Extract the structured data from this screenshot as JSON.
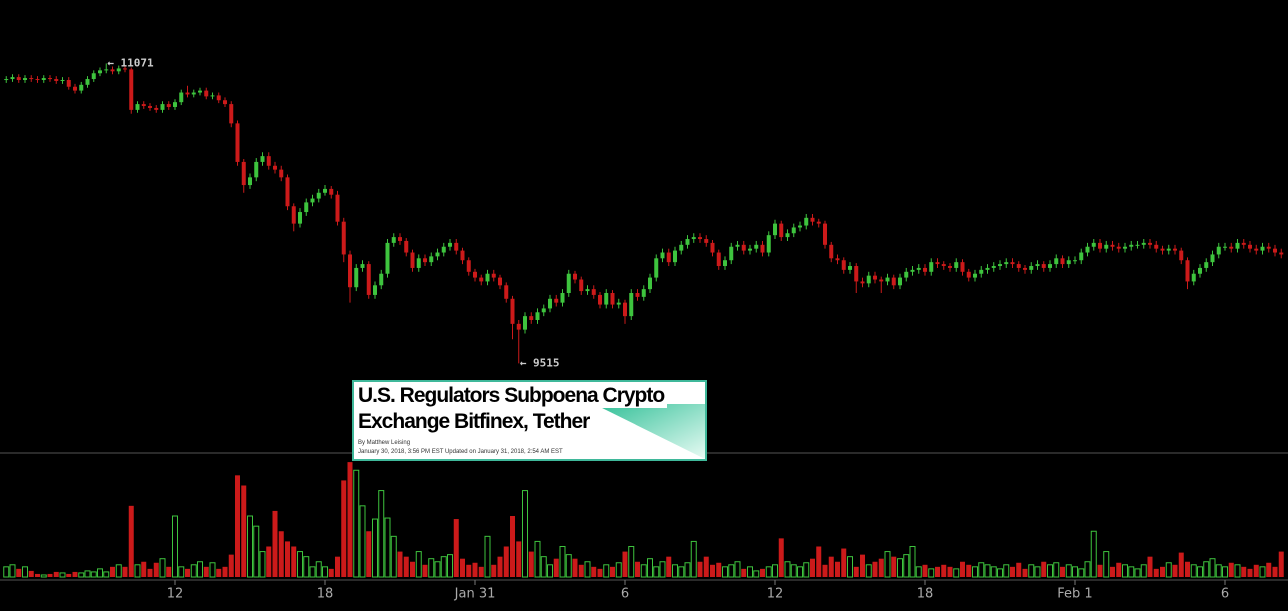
{
  "chart_data": {
    "type": "candlestick",
    "x": [
      5.25,
      5.5,
      5.75,
      6,
      6.25,
      6.5,
      6.75,
      7,
      7.25,
      7.5,
      7.75,
      8,
      8.25,
      8.5,
      8.75,
      9,
      9.25,
      9.5,
      9.75,
      10,
      10.25,
      10.5,
      10.75,
      11,
      11.25,
      11.5,
      11.75,
      12,
      12.25,
      12.5,
      12.75,
      13,
      13.25,
      13.5,
      13.75,
      14,
      14.25,
      14.5,
      14.75,
      15,
      15.25,
      15.5,
      15.75,
      16,
      16.25,
      16.5,
      16.75,
      17,
      17.25,
      17.5,
      17.75,
      18,
      18.25,
      18.5,
      18.75,
      19,
      19.25,
      19.5,
      19.75,
      20,
      20.25,
      20.5,
      20.75,
      21,
      21.25,
      21.5,
      21.75,
      22,
      22.25,
      22.5,
      22.75,
      23,
      23.25,
      23.5,
      23.75,
      24,
      24.25,
      24.5,
      24.75,
      25,
      25.25,
      25.5,
      25.75,
      26,
      26.25,
      26.5,
      26.75,
      27,
      27.25,
      27.5,
      27.75,
      28,
      28.25,
      28.5,
      28.75,
      29,
      29.25,
      29.5,
      29.75,
      30,
      30.25,
      30.5,
      30.75,
      31,
      31.25,
      31.5,
      31.75,
      32,
      32.25,
      32.5,
      32.75,
      33,
      33.25,
      33.5,
      33.75,
      34,
      34.25,
      34.5,
      34.75,
      35,
      35.25,
      35.5,
      35.75,
      36,
      36.25,
      36.5,
      36.75,
      37,
      37.25,
      37.5,
      37.75,
      38,
      38.25,
      38.5,
      38.75,
      39,
      39.25,
      39.5,
      39.75,
      40,
      40.25,
      40.5,
      40.75,
      41,
      41.25,
      41.5,
      41.75,
      42,
      42.25,
      42.5,
      42.75,
      43,
      43.25,
      43.5,
      43.75,
      44,
      44.25,
      44.5,
      44.75,
      45,
      45.25,
      45.5,
      45.75,
      46,
      46.25,
      46.5,
      46.75,
      47,
      47.25,
      47.5,
      47.75,
      48,
      48.25,
      48.5,
      48.75,
      49,
      49.25,
      49.5,
      49.75,
      50,
      50.25,
      50.5,
      50.75,
      51,
      51.25,
      51.5,
      51.75,
      52,
      52.25,
      52.5,
      52.75,
      53,
      53.25,
      53.5,
      53.75,
      54,
      54.25,
      54.5,
      54.75,
      55,
      55.25,
      55.5,
      55.75,
      56,
      56.25
    ],
    "open": [
      10985,
      10990,
      11000,
      10985,
      10995,
      10990,
      10985,
      10995,
      10990,
      10980,
      10985,
      10950,
      10930,
      10960,
      10990,
      11020,
      11035,
      11040,
      11030,
      11045,
      11040,
      10830,
      10860,
      10850,
      10840,
      10830,
      10860,
      10845,
      10870,
      10920,
      10910,
      10920,
      10930,
      10900,
      10905,
      10880,
      10860,
      10760,
      10560,
      10440,
      10480,
      10560,
      10590,
      10540,
      10520,
      10480,
      10330,
      10240,
      10300,
      10350,
      10370,
      10400,
      10420,
      10390,
      10250,
      10080,
      9910,
      10010,
      10030,
      9870,
      9920,
      9980,
      10140,
      10170,
      10150,
      10090,
      10010,
      10060,
      10040,
      10070,
      10090,
      10120,
      10140,
      10100,
      10050,
      9990,
      9960,
      9940,
      9980,
      9960,
      9920,
      9850,
      9720,
      9690,
      9760,
      9740,
      9780,
      9800,
      9850,
      9830,
      9880,
      9980,
      9950,
      9890,
      9900,
      9870,
      9820,
      9880,
      9820,
      9830,
      9760,
      9880,
      9860,
      9900,
      9960,
      10060,
      10090,
      10040,
      10100,
      10130,
      10160,
      10170,
      10160,
      10140,
      10090,
      10020,
      10050,
      10120,
      10130,
      10100,
      10110,
      10130,
      10090,
      10180,
      10240,
      10170,
      10190,
      10220,
      10230,
      10270,
      10250,
      10240,
      10130,
      10060,
      10050,
      10000,
      10020,
      9940,
      9930,
      9970,
      9950,
      9940,
      9960,
      9920,
      9960,
      9990,
      10000,
      10010,
      9990,
      10040,
      10030,
      10020,
      10010,
      10040,
      9990,
      9960,
      9980,
      10000,
      10010,
      10020,
      10030,
      10040,
      10030,
      10010,
      10000,
      10020,
      10030,
      10010,
      10030,
      10060,
      10030,
      10050,
      10050,
      10090,
      10120,
      10140,
      10110,
      10130,
      10120,
      10110,
      10120,
      10130,
      10130,
      10140,
      10130,
      10110,
      10100,
      10110,
      10100,
      10050,
      9940,
      9980,
      10010,
      10040,
      10080,
      10120,
      10120,
      10110,
      10140,
      10130,
      10110,
      10100,
      10120,
      10110,
      10090
    ],
    "high": [
      11005,
      11015,
      11015,
      11010,
      11010,
      11005,
      11010,
      11010,
      11005,
      11000,
      11000,
      10965,
      10975,
      11005,
      11035,
      11050,
      11071,
      11055,
      11060,
      11060,
      11050,
      10875,
      10875,
      10865,
      10855,
      10875,
      10875,
      10885,
      10935,
      10955,
      10935,
      10945,
      10945,
      10920,
      10920,
      10895,
      10875,
      10775,
      10575,
      10500,
      10580,
      10610,
      10610,
      10560,
      10540,
      10495,
      10345,
      10320,
      10370,
      10390,
      10420,
      10440,
      10435,
      10410,
      10270,
      10100,
      10030,
      10050,
      10045,
      9940,
      10000,
      10160,
      10190,
      10190,
      10165,
      10105,
      10080,
      10080,
      10090,
      10110,
      10140,
      10160,
      10160,
      10115,
      10065,
      10005,
      9975,
      10000,
      10000,
      9975,
      9935,
      9865,
      9740,
      9780,
      9780,
      9800,
      9820,
      9870,
      9870,
      9900,
      10000,
      9995,
      9965,
      9920,
      9920,
      9885,
      9900,
      9895,
      9850,
      9845,
      9900,
      9900,
      9920,
      9980,
      10080,
      10110,
      10110,
      10120,
      10150,
      10180,
      10190,
      10190,
      10180,
      10155,
      10105,
      10070,
      10140,
      10150,
      10150,
      10130,
      10150,
      10150,
      10200,
      10260,
      10255,
      10210,
      10240,
      10250,
      10290,
      10290,
      10265,
      10255,
      10145,
      10080,
      10065,
      10040,
      10035,
      9960,
      9990,
      9990,
      9965,
      9980,
      9975,
      9980,
      10010,
      10020,
      10030,
      10030,
      10060,
      10060,
      10045,
      10035,
      10060,
      10055,
      10005,
      10000,
      10020,
      10030,
      10040,
      10050,
      10060,
      10060,
      10045,
      10025,
      10040,
      10050,
      10045,
      10050,
      10080,
      10075,
      10070,
      10070,
      10110,
      10140,
      10160,
      10160,
      10150,
      10150,
      10140,
      10140,
      10150,
      10150,
      10160,
      10160,
      10150,
      10125,
      10130,
      10130,
      10115,
      10065,
      10000,
      10030,
      10060,
      10100,
      10140,
      10140,
      10140,
      10160,
      10160,
      10150,
      10130,
      10140,
      10140,
      10130,
      10110
    ],
    "low": [
      10970,
      10975,
      10970,
      10970,
      10975,
      10970,
      10970,
      10975,
      10965,
      10965,
      10935,
      10915,
      10915,
      10945,
      10975,
      11005,
      11020,
      11015,
      11015,
      11025,
      10810,
      10815,
      10835,
      10825,
      10815,
      10815,
      10830,
      10830,
      10855,
      10895,
      10895,
      10905,
      10885,
      10885,
      10865,
      10845,
      10740,
      10540,
      10400,
      10420,
      10460,
      10540,
      10520,
      10500,
      10460,
      10310,
      10200,
      10220,
      10280,
      10330,
      10350,
      10385,
      10370,
      10230,
      10040,
      9830,
      9890,
      9990,
      9850,
      9850,
      9900,
      9960,
      10120,
      10130,
      10070,
      9990,
      9990,
      10020,
      10020,
      10050,
      10070,
      10100,
      10080,
      10030,
      9970,
      9940,
      9920,
      9920,
      9940,
      9900,
      9830,
      9640,
      9515,
      9670,
      9720,
      9720,
      9760,
      9780,
      9810,
      9810,
      9860,
      9930,
      9870,
      9870,
      9850,
      9800,
      9800,
      9800,
      9800,
      9720,
      9740,
      9840,
      9840,
      9880,
      9940,
      10040,
      10020,
      10020,
      10080,
      10110,
      10140,
      10140,
      10120,
      10070,
      10000,
      10000,
      10030,
      10100,
      10080,
      10080,
      10090,
      10070,
      10070,
      10160,
      10150,
      10150,
      10170,
      10200,
      10210,
      10230,
      10220,
      10110,
      10040,
      10030,
      9980,
      9980,
      9880,
      9910,
      9910,
      9930,
      9880,
      9920,
      9900,
      9900,
      9940,
      9970,
      9980,
      9970,
      9970,
      10010,
      10000,
      9990,
      9990,
      9970,
      9940,
      9940,
      9960,
      9980,
      9990,
      10000,
      10010,
      10010,
      9990,
      9980,
      9980,
      10000,
      9990,
      9990,
      10010,
      10010,
      10010,
      10030,
      10030,
      10070,
      10100,
      10090,
      10090,
      10100,
      10090,
      10090,
      10100,
      10110,
      10110,
      10110,
      10090,
      10080,
      10080,
      10080,
      10030,
      9900,
      9920,
      9960,
      9990,
      10020,
      10060,
      10100,
      10090,
      10090,
      10110,
      10090,
      10080,
      10080,
      10090,
      10070,
      10060
    ],
    "close": [
      10990,
      11000,
      10985,
      10995,
      10990,
      10985,
      10995,
      10990,
      10980,
      10985,
      10950,
      10930,
      10960,
      10990,
      11020,
      11035,
      11040,
      11030,
      11045,
      11040,
      10830,
      10860,
      10850,
      10840,
      10830,
      10860,
      10845,
      10870,
      10920,
      10910,
      10920,
      10930,
      10900,
      10905,
      10880,
      10860,
      10760,
      10560,
      10440,
      10480,
      10560,
      10590,
      10540,
      10520,
      10480,
      10330,
      10240,
      10300,
      10350,
      10370,
      10400,
      10420,
      10390,
      10250,
      10080,
      9910,
      10010,
      10030,
      9870,
      9920,
      9980,
      10140,
      10170,
      10150,
      10090,
      10010,
      10060,
      10040,
      10070,
      10090,
      10120,
      10140,
      10100,
      10050,
      9990,
      9960,
      9940,
      9980,
      9960,
      9920,
      9850,
      9720,
      9690,
      9760,
      9740,
      9780,
      9800,
      9850,
      9830,
      9880,
      9980,
      9950,
      9890,
      9900,
      9870,
      9820,
      9880,
      9820,
      9830,
      9760,
      9880,
      9860,
      9900,
      9960,
      10060,
      10090,
      10040,
      10100,
      10130,
      10160,
      10170,
      10160,
      10140,
      10090,
      10020,
      10050,
      10120,
      10130,
      10100,
      10110,
      10130,
      10090,
      10180,
      10240,
      10170,
      10190,
      10220,
      10230,
      10270,
      10250,
      10240,
      10130,
      10060,
      10050,
      10000,
      10020,
      9940,
      9930,
      9970,
      9950,
      9940,
      9960,
      9920,
      9960,
      9990,
      10000,
      10010,
      9990,
      10040,
      10030,
      10020,
      10010,
      10040,
      9990,
      9960,
      9980,
      10000,
      10010,
      10020,
      10030,
      10040,
      10030,
      10010,
      10000,
      10020,
      10030,
      10010,
      10030,
      10060,
      10030,
      10050,
      10050,
      10090,
      10120,
      10140,
      10110,
      10130,
      10120,
      10110,
      10120,
      10130,
      10130,
      10140,
      10130,
      10110,
      10100,
      10110,
      10100,
      10050,
      9940,
      9980,
      10010,
      10040,
      10080,
      10120,
      10120,
      10110,
      10140,
      10130,
      10110,
      10100,
      10120,
      10110,
      10090,
      10080
    ],
    "volume": [
      10,
      12,
      8,
      10,
      6,
      3,
      2,
      3,
      5,
      4,
      3,
      5,
      4,
      6,
      5,
      8,
      5,
      10,
      12,
      10,
      70,
      12,
      15,
      8,
      14,
      18,
      10,
      60,
      10,
      8,
      12,
      15,
      10,
      14,
      8,
      10,
      22,
      100,
      90,
      60,
      50,
      25,
      30,
      65,
      45,
      35,
      30,
      25,
      20,
      10,
      15,
      10,
      8,
      20,
      95,
      113,
      105,
      70,
      45,
      57,
      85,
      58,
      40,
      25,
      20,
      15,
      25,
      12,
      18,
      15,
      20,
      22,
      57,
      18,
      12,
      14,
      10,
      40,
      12,
      20,
      30,
      60,
      35,
      85,
      25,
      35,
      20,
      12,
      18,
      30,
      22,
      18,
      12,
      15,
      10,
      8,
      12,
      10,
      14,
      25,
      30,
      15,
      12,
      18,
      10,
      15,
      20,
      12,
      10,
      14,
      35,
      15,
      20,
      12,
      14,
      10,
      12,
      15,
      8,
      10,
      6,
      8,
      10,
      12,
      38,
      15,
      12,
      10,
      14,
      18,
      30,
      12,
      20,
      15,
      28,
      20,
      10,
      22,
      12,
      15,
      18,
      25,
      20,
      18,
      22,
      30,
      10,
      12,
      8,
      10,
      12,
      10,
      8,
      15,
      12,
      10,
      14,
      12,
      10,
      8,
      12,
      10,
      14,
      8,
      12,
      10,
      15,
      12,
      14,
      10,
      12,
      10,
      8,
      15,
      45,
      12,
      25,
      10,
      14,
      12,
      10,
      8,
      12,
      20,
      8,
      10,
      14,
      12,
      24,
      15,
      12,
      10,
      15,
      18,
      12,
      10,
      14,
      12,
      10,
      8,
      12,
      10,
      14,
      10,
      25
    ],
    "up_color": "#3ec43e",
    "down_color": "#cc1a1a",
    "xlim": [
      5,
      56.52
    ],
    "xticks": [
      12,
      18,
      {
        "value": 24,
        "label": "Jan 31"
      },
      {
        "value": 30,
        "label": "6"
      },
      {
        "value": 36,
        "label": "12"
      },
      {
        "value": 42,
        "label": "18"
      },
      {
        "value": 48,
        "label": "Feb 1"
      },
      {
        "value": 54,
        "label": "6"
      }
    ],
    "ylim": [
      9050,
      11400
    ],
    "volume_lim": [
      0,
      120
    ],
    "annotations": [
      {
        "x": 9.25,
        "y": 11071,
        "label": "← 11071"
      },
      {
        "x": 25.75,
        "y": 9515,
        "label": "← 9515"
      }
    ]
  },
  "news_card": {
    "headline": [
      "U.S. Regulators Subpoena Crypto",
      "Exchange Bitfinex, Tether"
    ],
    "byline": "By Matthew Leising",
    "dateline": "January 30, 2018, 3:56 PM EST Updated on January 31, 2018, 2:54 AM EST"
  }
}
